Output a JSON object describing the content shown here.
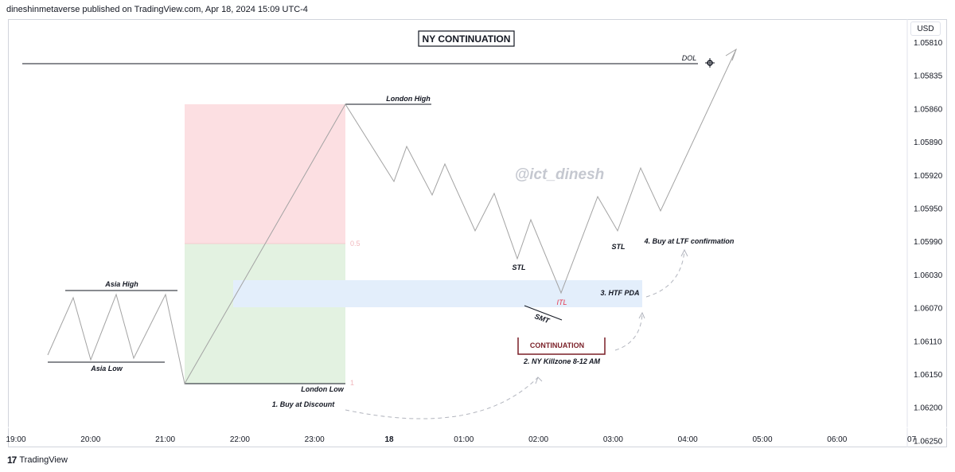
{
  "header": {
    "credit": "dineshinmetaverse published on TradingView.com, Apr 18, 2024 15:09 UTC-4"
  },
  "footer": {
    "logo": "17",
    "brand": "TradingView"
  },
  "chart_data": {
    "type": "line",
    "title": "NY CONTINUATION",
    "watermark": "@ict_dinesh",
    "currency": "USD",
    "y_axis_ticks": [
      "1.05810",
      "1.05835",
      "1.05860",
      "1.05890",
      "1.05920",
      "1.05950",
      "1.05990",
      "1.06030",
      "1.06070",
      "1.06110",
      "1.06150",
      "1.06200",
      "1.06250"
    ],
    "x_axis_ticks": [
      "19:00",
      "20:00",
      "21:00",
      "22:00",
      "23:00",
      "18",
      "01:00",
      "02:00",
      "03:00",
      "04:00",
      "05:00",
      "06:00",
      "07"
    ],
    "annotations": {
      "asia_high": "Asia High",
      "asia_low": "Asia Low",
      "london_high": "London High",
      "london_low": "London Low",
      "dol": "DOL",
      "fib_half": "0.5",
      "fib_one": "1",
      "stl_1": "STL",
      "stl_2": "STL",
      "itl": "ITL",
      "smt": "SMT",
      "continuation": "CONTINUATION",
      "step1": "1. Buy at Discount",
      "step2": "2. NY Killzone 8-12 AM",
      "step3": "3. HTF PDA",
      "step4": "4. Buy at LTF confirmation"
    },
    "colors": {
      "premium_zone": "#fcdfe2",
      "discount_zone": "#e3f2e1",
      "pda_zone": "#e3eefb",
      "price_path": "#a3a3a3",
      "itl_label": "#e53950",
      "continuation_box": "#7a1f27"
    }
  }
}
